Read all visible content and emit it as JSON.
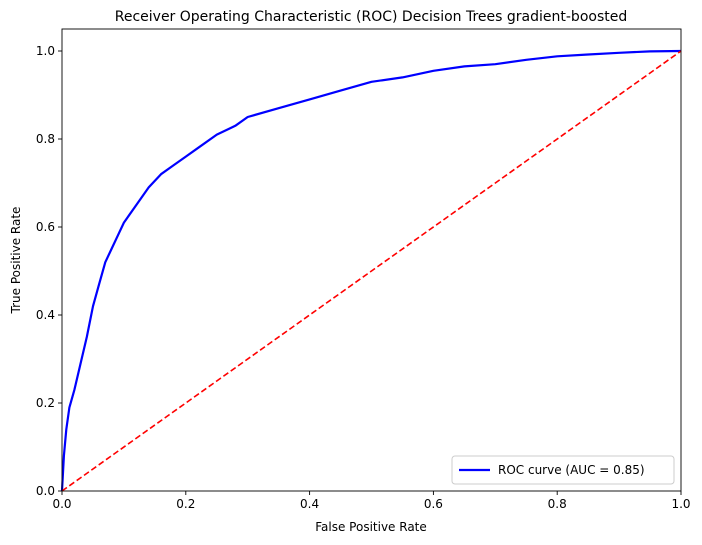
{
  "chart_data": {
    "type": "line",
    "title": "Receiver Operating Characteristic (ROC) Decision Trees gradient-boosted",
    "xlabel": "False Positive Rate",
    "ylabel": "True Positive Rate",
    "xlim": [
      0,
      1
    ],
    "ylim": [
      0,
      1.05
    ],
    "xticks": [
      "0.0",
      "0.2",
      "0.4",
      "0.6",
      "0.8",
      "1.0"
    ],
    "yticks": [
      "0.0",
      "0.2",
      "0.4",
      "0.6",
      "0.8",
      "1.0"
    ],
    "grid": false,
    "legend_position": "lower-right",
    "series": [
      {
        "name": "ROC curve (AUC = 0.85)",
        "color": "#0000ff",
        "style": "solid",
        "x": [
          0.0,
          0.003,
          0.007,
          0.012,
          0.02,
          0.03,
          0.04,
          0.05,
          0.06,
          0.07,
          0.08,
          0.09,
          0.1,
          0.12,
          0.14,
          0.16,
          0.18,
          0.2,
          0.22,
          0.25,
          0.28,
          0.3,
          0.35,
          0.4,
          0.45,
          0.5,
          0.55,
          0.6,
          0.65,
          0.7,
          0.75,
          0.8,
          0.85,
          0.9,
          0.95,
          1.0
        ],
        "y": [
          0.0,
          0.08,
          0.14,
          0.19,
          0.23,
          0.29,
          0.35,
          0.42,
          0.47,
          0.52,
          0.55,
          0.58,
          0.61,
          0.65,
          0.69,
          0.72,
          0.74,
          0.76,
          0.78,
          0.81,
          0.83,
          0.85,
          0.87,
          0.89,
          0.91,
          0.93,
          0.94,
          0.955,
          0.965,
          0.97,
          0.98,
          0.988,
          0.992,
          0.996,
          0.999,
          1.0
        ]
      },
      {
        "name": "",
        "color": "#ff0000",
        "style": "dashed",
        "x": [
          0,
          1
        ],
        "y": [
          0,
          1
        ]
      }
    ]
  }
}
